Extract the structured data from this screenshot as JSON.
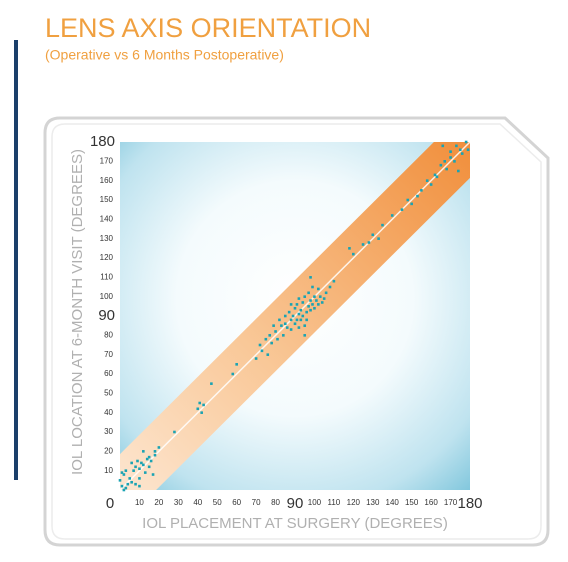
{
  "chart_data": {
    "type": "scatter",
    "title": "LENS AXIS ORIENTATION",
    "subtitle": "(Operative vs 6 Months Postoperative)",
    "x_label": "IOL PLACEMENT AT SURGERY (DEGREES)",
    "y_label": "IOL LOCATION AT 6-MONTH VISIT (DEGREES)",
    "color": "#1aa3b3",
    "xlim": [
      0,
      180
    ],
    "ylim": [
      0,
      180
    ],
    "xticks": [
      0,
      10,
      20,
      30,
      40,
      50,
      60,
      70,
      80,
      90,
      100,
      110,
      120,
      130,
      140,
      150,
      160,
      170,
      180
    ],
    "yticks": [
      10,
      20,
      30,
      40,
      50,
      60,
      70,
      80,
      90,
      100,
      110,
      120,
      130,
      140,
      150,
      160,
      170,
      180
    ],
    "x": [
      0,
      1,
      2,
      3,
      2,
      4,
      5,
      6,
      7,
      8,
      8,
      9,
      10,
      10,
      11,
      12,
      12,
      13,
      14,
      15,
      15,
      16,
      18,
      18,
      20,
      6,
      1,
      3,
      10,
      17,
      28,
      40,
      41,
      42,
      43,
      47,
      58,
      60,
      70,
      72,
      73,
      75,
      76,
      77,
      78,
      79,
      80,
      81,
      82,
      83,
      84,
      85,
      85,
      86,
      87,
      88,
      88,
      89,
      90,
      90,
      91,
      91,
      92,
      92,
      93,
      93,
      94,
      94,
      95,
      95,
      96,
      96,
      97,
      97,
      98,
      98,
      99,
      100,
      100,
      101,
      102,
      102,
      103,
      104,
      105,
      106,
      108,
      110,
      98,
      95,
      88,
      92,
      99,
      118,
      120,
      125,
      128,
      130,
      133,
      135,
      140,
      145,
      148,
      150,
      153,
      155,
      158,
      160,
      162,
      163,
      165,
      167,
      168,
      170,
      170,
      172,
      173,
      175,
      176,
      178,
      179,
      174,
      166
    ],
    "values": [
      5,
      2,
      8,
      10,
      0,
      3,
      6,
      4,
      10,
      12,
      3,
      15,
      11,
      6,
      14,
      13,
      20,
      9,
      16,
      12,
      17,
      15,
      20,
      18,
      22,
      14,
      9,
      1,
      2,
      8,
      30,
      42,
      45,
      40,
      44,
      55,
      60,
      65,
      68,
      75,
      72,
      78,
      70,
      80,
      76,
      85,
      82,
      78,
      88,
      85,
      80,
      90,
      86,
      84,
      92,
      88,
      83,
      90,
      94,
      86,
      88,
      96,
      91,
      84,
      93,
      88,
      97,
      90,
      85,
      100,
      92,
      88,
      95,
      102,
      98,
      93,
      96,
      100,
      94,
      98,
      96,
      104,
      100,
      97,
      99,
      102,
      105,
      108,
      110,
      80,
      96,
      99,
      105,
      125,
      122,
      127,
      128,
      132,
      130,
      137,
      142,
      145,
      150,
      148,
      152,
      155,
      160,
      158,
      163,
      162,
      168,
      170,
      166,
      172,
      175,
      170,
      178,
      176,
      174,
      180,
      176,
      165,
      178
    ]
  }
}
